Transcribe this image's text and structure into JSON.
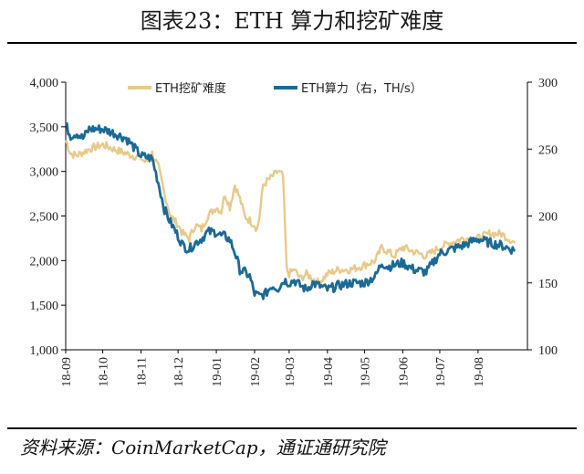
{
  "header": {
    "title": "图表23：ETH 算力和挖矿难度"
  },
  "footer": {
    "source": "资料来源：CoinMarketCap，通证通研究院"
  },
  "chart_data": {
    "type": "line",
    "title": "图表23：ETH 算力和挖矿难度",
    "xlabel": "",
    "ylabel": "",
    "x_ticks": [
      "18-09",
      "18-10",
      "18-11",
      "18-12",
      "19-01",
      "19-02",
      "19-03",
      "19-04",
      "19-05",
      "19-06",
      "19-07",
      "19-08"
    ],
    "y_left": {
      "range": [
        1000,
        4000
      ],
      "ticks": [
        "1,000",
        "1,500",
        "2,000",
        "2,500",
        "3,000",
        "3,500",
        "4,000"
      ]
    },
    "y_right": {
      "range": [
        100,
        300
      ],
      "ticks": [
        "100",
        "150",
        "200",
        "250",
        "300"
      ]
    },
    "grid": false,
    "legend_position": "top-center",
    "series": [
      {
        "name": "ETH挖矿难度",
        "axis": "left",
        "color": "#E8C98A",
        "x": [
          "2018-09-01",
          "2018-09-05",
          "2018-09-10",
          "2018-09-20",
          "2018-10-01",
          "2018-10-10",
          "2018-10-20",
          "2018-11-01",
          "2018-11-05",
          "2018-11-10",
          "2018-11-15",
          "2018-11-20",
          "2018-11-25",
          "2018-12-01",
          "2018-12-05",
          "2018-12-10",
          "2018-12-15",
          "2018-12-20",
          "2018-12-25",
          "2019-01-01",
          "2019-01-05",
          "2019-01-08",
          "2019-01-12",
          "2019-01-16",
          "2019-01-20",
          "2019-01-24",
          "2019-01-28",
          "2019-02-01",
          "2019-02-03",
          "2019-02-05",
          "2019-02-08",
          "2019-02-12",
          "2019-02-16",
          "2019-02-20",
          "2019-02-24",
          "2019-02-27",
          "2019-03-01",
          "2019-03-05",
          "2019-03-10",
          "2019-03-15",
          "2019-03-20",
          "2019-03-25",
          "2019-04-01",
          "2019-04-10",
          "2019-04-20",
          "2019-05-01",
          "2019-05-10",
          "2019-05-15",
          "2019-05-20",
          "2019-05-25",
          "2019-06-01",
          "2019-06-10",
          "2019-06-20",
          "2019-07-01",
          "2019-07-10",
          "2019-07-20",
          "2019-08-01",
          "2019-08-10",
          "2019-08-20",
          "2019-08-31"
        ],
        "y": [
          3350,
          3200,
          3180,
          3250,
          3300,
          3250,
          3200,
          3150,
          3100,
          3200,
          3050,
          2750,
          2500,
          2400,
          2300,
          2250,
          2400,
          2350,
          2500,
          2600,
          2550,
          2750,
          2600,
          2850,
          2700,
          2500,
          2450,
          2400,
          2350,
          2500,
          2850,
          2900,
          2950,
          3000,
          2950,
          1900,
          1850,
          1900,
          1800,
          1850,
          1800,
          1750,
          1850,
          1900,
          1900,
          1950,
          2000,
          2150,
          2100,
          2050,
          2150,
          2100,
          2050,
          2150,
          2200,
          2250,
          2250,
          2300,
          2300,
          2200
        ]
      },
      {
        "name": "ETH算力（右，TH/s）",
        "axis": "right",
        "color": "#1B6A96",
        "x": [
          "2018-09-01",
          "2018-09-05",
          "2018-09-10",
          "2018-09-15",
          "2018-09-20",
          "2018-10-01",
          "2018-10-10",
          "2018-10-20",
          "2018-11-01",
          "2018-11-05",
          "2018-11-10",
          "2018-11-15",
          "2018-11-20",
          "2018-11-25",
          "2018-12-01",
          "2018-12-05",
          "2018-12-10",
          "2018-12-15",
          "2018-12-20",
          "2018-12-25",
          "2019-01-01",
          "2019-01-05",
          "2019-01-08",
          "2019-01-12",
          "2019-01-16",
          "2019-01-20",
          "2019-01-24",
          "2019-01-28",
          "2019-02-01",
          "2019-02-05",
          "2019-02-10",
          "2019-02-15",
          "2019-02-20",
          "2019-02-25",
          "2019-03-01",
          "2019-03-05",
          "2019-03-10",
          "2019-03-15",
          "2019-03-20",
          "2019-03-25",
          "2019-04-01",
          "2019-04-10",
          "2019-04-20",
          "2019-05-01",
          "2019-05-10",
          "2019-05-15",
          "2019-05-20",
          "2019-06-01",
          "2019-06-10",
          "2019-06-20",
          "2019-07-01",
          "2019-07-10",
          "2019-07-20",
          "2019-08-01",
          "2019-08-10",
          "2019-08-20",
          "2019-08-31"
        ],
        "y": [
          268,
          260,
          262,
          258,
          265,
          265,
          262,
          258,
          245,
          244,
          243,
          225,
          205,
          195,
          185,
          178,
          175,
          180,
          183,
          188,
          188,
          185,
          185,
          182,
          173,
          160,
          158,
          155,
          142,
          140,
          142,
          148,
          146,
          152,
          150,
          152,
          148,
          145,
          150,
          148,
          145,
          148,
          150,
          150,
          155,
          165,
          162,
          165,
          160,
          158,
          172,
          175,
          178,
          183,
          180,
          178,
          174
        ]
      }
    ]
  }
}
